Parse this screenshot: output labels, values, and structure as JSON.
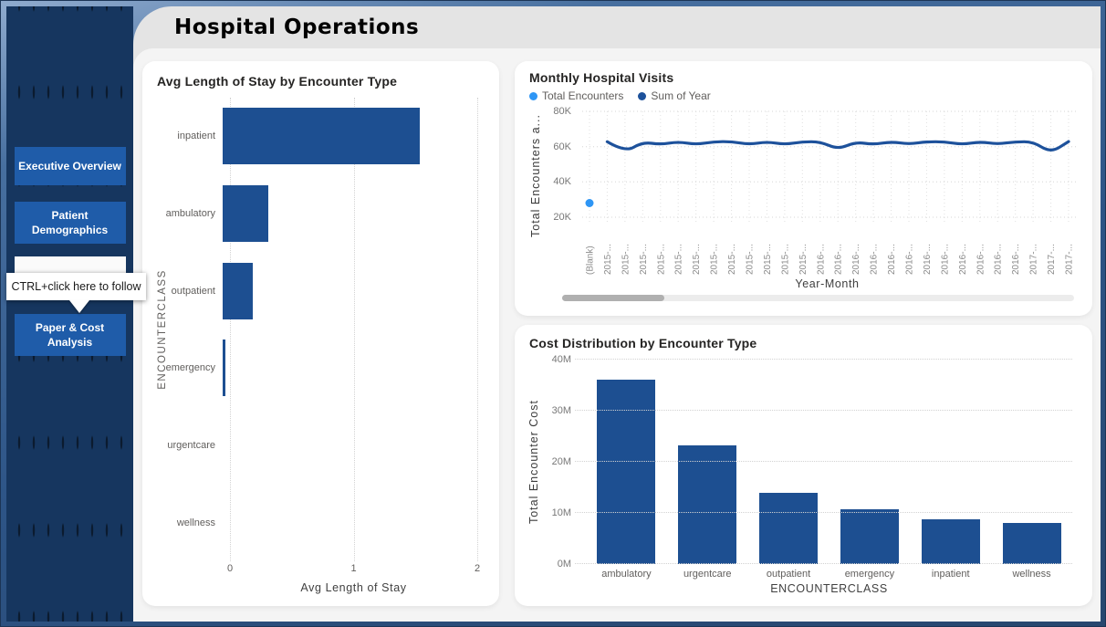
{
  "window": {
    "title": "Hospital Operations"
  },
  "sidebar": {
    "nav": [
      {
        "label": "Executive Overview",
        "state": "default"
      },
      {
        "label": "Patient Demographics",
        "state": "default"
      },
      {
        "label": "",
        "state": "hovered"
      },
      {
        "label": "Paper & Cost Analysis",
        "state": "default"
      }
    ],
    "tooltip_text": "CTRL+click here to follow"
  },
  "colors": {
    "sidebar_navy": "#16365f",
    "nav_button_blue": "#1f5ca9",
    "bar_navy": "#1d4f91",
    "line_navy": "#1d519b",
    "point_light_blue": "#2e96f5",
    "header_gray": "#e4e4e4",
    "panel_gray": "#f4f4f4"
  },
  "chart_data": [
    {
      "type": "bar",
      "orientation": "horizontal",
      "title": "Avg Length of Stay by Encounter Type",
      "categories": [
        "inpatient",
        "ambulatory",
        "outpatient",
        "emergency",
        "urgentcare",
        "wellness"
      ],
      "values": [
        1.55,
        0.36,
        0.24,
        0.02,
        0,
        0
      ],
      "xlabel": "Avg Length of Stay",
      "ylabel": "ENCOUNTERCLASS",
      "xlim": [
        0,
        2
      ],
      "x_ticks": [
        "0",
        "1",
        "2"
      ],
      "grid": "vertical-dotted",
      "bar_color": "#1d4f91"
    },
    {
      "type": "line",
      "title": "Monthly Hospital Visits",
      "x_labels": [
        "(Blank)",
        "2015-...",
        "2015-...",
        "2015-...",
        "2015-...",
        "2015-...",
        "2015-...",
        "2015-...",
        "2015-...",
        "2015-...",
        "2015-...",
        "2015-...",
        "2015-...",
        "2016-...",
        "2016-...",
        "2016-...",
        "2016-...",
        "2016-...",
        "2016-...",
        "2016-...",
        "2016-...",
        "2016-...",
        "2016-...",
        "2016-...",
        "2016-...",
        "2017-...",
        "2017-...",
        "2017-..."
      ],
      "series": [
        {
          "name": "Total Encounters",
          "color": "#2e96f5",
          "style": "point",
          "values": [
            28000,
            null,
            null,
            null,
            null,
            null,
            null,
            null,
            null,
            null,
            null,
            null,
            null,
            null,
            null,
            null,
            null,
            null,
            null,
            null,
            null,
            null,
            null,
            null,
            null,
            null,
            null,
            null
          ]
        },
        {
          "name": "Sum of Year",
          "color": "#1d519b",
          "style": "line",
          "values": [
            null,
            62800,
            56800,
            62600,
            61200,
            62800,
            61200,
            62800,
            62900,
            61200,
            62800,
            61200,
            62800,
            62800,
            58500,
            62600,
            61200,
            62800,
            61400,
            62800,
            62800,
            61200,
            62800,
            61400,
            62800,
            62800,
            56500,
            62900
          ]
        }
      ],
      "xlabel": "Year-Month",
      "ylabel": "Total Encounters a...",
      "ylim": [
        20000,
        80000
      ],
      "y_ticks": [
        "20K",
        "40K",
        "60K",
        "80K"
      ],
      "y_tick_values": [
        20000,
        40000,
        60000,
        80000
      ],
      "grid": "dotted",
      "legend_position": "top-left",
      "scrollbar": {
        "thumb_fraction": 0.2,
        "thumb_start": 0
      }
    },
    {
      "type": "bar",
      "orientation": "vertical",
      "title": "Cost Distribution by Encounter Type",
      "categories": [
        "ambulatory",
        "urgentcare",
        "outpatient",
        "emergency",
        "inpatient",
        "wellness"
      ],
      "values": [
        36000000,
        23300000,
        14000000,
        10700000,
        8800000,
        8100000
      ],
      "xlabel": "ENCOUNTERCLASS",
      "ylabel": "Total Encounter Cost",
      "ylim": [
        0,
        40000000
      ],
      "y_ticks": [
        "0M",
        "10M",
        "20M",
        "30M",
        "40M"
      ],
      "y_tick_values": [
        0,
        10000000,
        20000000,
        30000000,
        40000000
      ],
      "grid": "horizontal-dotted",
      "bar_color": "#1d4f91"
    }
  ]
}
